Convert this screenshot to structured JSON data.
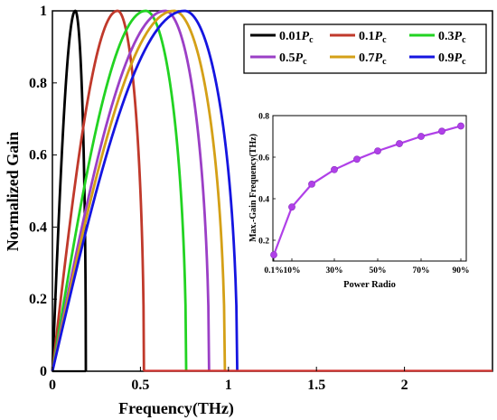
{
  "chart_data": [
    {
      "type": "line",
      "xlabel": "Frequency(THz)",
      "ylabel": "Normalized Gain",
      "xlim": [
        0,
        2.5
      ],
      "ylim": [
        0,
        1
      ],
      "x_ticks": [
        "0",
        "0.5",
        "1",
        "1.5",
        "2"
      ],
      "y_ticks": [
        "0",
        "0.2",
        "0.4",
        "0.6",
        "0.8",
        "1"
      ],
      "grid": false,
      "legend_position": "top-right",
      "legend_symbol": "P",
      "legend_subscript": "c",
      "baseline_color": "#d0312d",
      "series": [
        {
          "name": "0.01",
          "color": "#000000",
          "peak_x": 0.13,
          "cutoff_x": 0.19
        },
        {
          "name": "0.1",
          "color": "#c0392b",
          "peak_x": 0.37,
          "cutoff_x": 0.52
        },
        {
          "name": "0.3",
          "color": "#22d322",
          "peak_x": 0.53,
          "cutoff_x": 0.76
        },
        {
          "name": "0.5",
          "color": "#9b3fc6",
          "peak_x": 0.64,
          "cutoff_x": 0.89
        },
        {
          "name": "0.7",
          "color": "#d4a017",
          "peak_x": 0.69,
          "cutoff_x": 0.98
        },
        {
          "name": "0.9",
          "color": "#1515e0",
          "peak_x": 0.75,
          "cutoff_x": 1.05
        }
      ]
    },
    {
      "type": "line",
      "xlabel": "Power Radio",
      "ylabel": "Max.-Gain Frequency(THz)",
      "ylim": [
        0.1,
        0.8
      ],
      "x_ticks": [
        "0.1%",
        "10%",
        "30%",
        "50%",
        "70%",
        "90%"
      ],
      "y_ticks": [
        "0.2",
        "0.4",
        "0.6",
        "0.8"
      ],
      "line_color": "#b040e8",
      "x": [
        0.1,
        10,
        20,
        30,
        40,
        50,
        60,
        70,
        80,
        90
      ],
      "y": [
        0.13,
        0.36,
        0.47,
        0.54,
        0.59,
        0.63,
        0.665,
        0.7,
        0.725,
        0.75
      ]
    }
  ]
}
